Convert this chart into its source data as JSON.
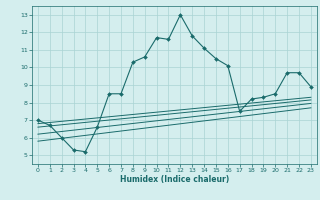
{
  "title": "",
  "xlabel": "Humidex (Indice chaleur)",
  "ylabel": "",
  "xlim": [
    -0.5,
    23.5
  ],
  "ylim": [
    4.5,
    13.5
  ],
  "yticks": [
    5,
    6,
    7,
    8,
    9,
    10,
    11,
    12,
    13
  ],
  "xticks": [
    0,
    1,
    2,
    3,
    4,
    5,
    6,
    7,
    8,
    9,
    10,
    11,
    12,
    13,
    14,
    15,
    16,
    17,
    18,
    19,
    20,
    21,
    22,
    23
  ],
  "bg_color": "#d4eeee",
  "line_color": "#1a6b6b",
  "grid_color": "#aad4d4",
  "main_line": {
    "x": [
      0,
      1,
      2,
      3,
      4,
      5,
      6,
      7,
      8,
      9,
      10,
      11,
      12,
      13,
      14,
      15,
      16,
      17,
      18,
      19,
      20,
      21,
      22,
      23
    ],
    "y": [
      7.0,
      6.7,
      6.0,
      5.3,
      5.2,
      6.6,
      8.5,
      8.5,
      10.3,
      10.6,
      11.7,
      11.6,
      13.0,
      11.8,
      11.1,
      10.5,
      10.1,
      7.5,
      8.2,
      8.3,
      8.5,
      9.7,
      9.7,
      8.9
    ]
  },
  "linear_lines": [
    {
      "x": [
        0,
        23
      ],
      "y": [
        6.8,
        8.3
      ]
    },
    {
      "x": [
        0,
        23
      ],
      "y": [
        6.6,
        8.15
      ]
    },
    {
      "x": [
        0,
        23
      ],
      "y": [
        6.2,
        7.95
      ]
    },
    {
      "x": [
        0,
        23
      ],
      "y": [
        5.8,
        7.7
      ]
    }
  ]
}
